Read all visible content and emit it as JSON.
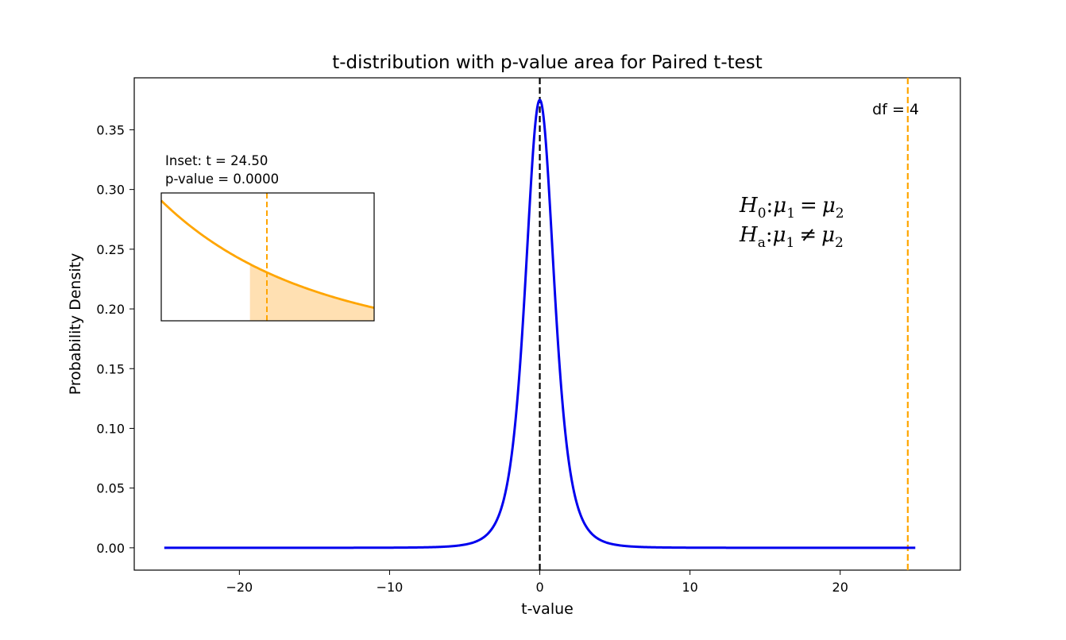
{
  "chart_data": {
    "type": "line",
    "title": "t-distribution with p-value area for Paired t-test",
    "xlabel": "t-value",
    "ylabel": "Probability Density",
    "xlim": [
      -27,
      28
    ],
    "ylim": [
      -0.0187,
      0.3935
    ],
    "x_ticks": [
      -20,
      -10,
      0,
      10,
      20
    ],
    "x_tick_labels": [
      "−20",
      "−10",
      "0",
      "10",
      "20"
    ],
    "y_ticks": [
      0.0,
      0.05,
      0.1,
      0.15,
      0.2,
      0.25,
      0.3,
      0.35
    ],
    "y_tick_labels": [
      "0.00",
      "0.05",
      "0.10",
      "0.15",
      "0.20",
      "0.25",
      "0.30",
      "0.35"
    ],
    "series": [
      {
        "distribution": "student-t",
        "df": 4,
        "x_range": [
          -25,
          25
        ],
        "color": "#0000ee"
      }
    ],
    "vertical_lines": [
      {
        "x": 0,
        "color": "#000000",
        "style": "dashed"
      },
      {
        "x": 24.5,
        "color": "#ffa500",
        "style": "dashed"
      }
    ],
    "df_label": "df = 4",
    "inset": {
      "line1": "Inset: t = 24.50",
      "line2": "p-value = 0.0000",
      "t_value": 24.5,
      "line_color": "#ffa500",
      "fill_color": "#ffe0b2"
    },
    "hypotheses": {
      "h0": {
        "symbol": "H",
        "sub": "0",
        "lhs": "μ",
        "lhs_sub": "1",
        "op": "=",
        "rhs": "μ",
        "rhs_sub": "2"
      },
      "ha": {
        "symbol": "H",
        "sub": "a",
        "lhs": "μ",
        "lhs_sub": "1",
        "op": "≠",
        "rhs": "μ",
        "rhs_sub": "2"
      }
    },
    "grid": false,
    "legend": "none"
  }
}
